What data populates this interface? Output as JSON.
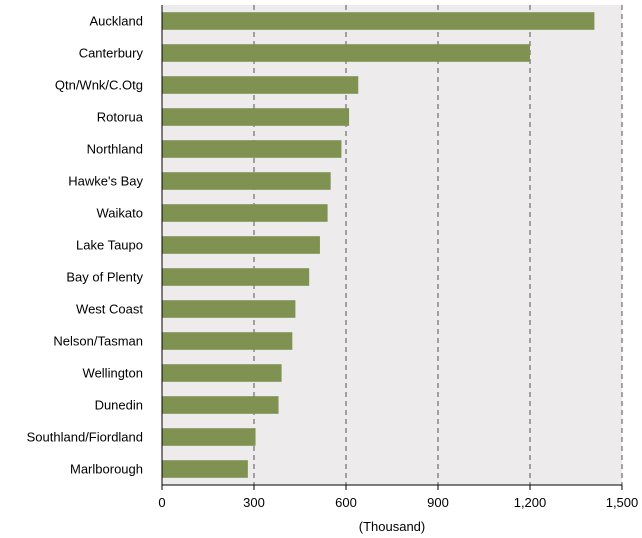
{
  "chart_data": {
    "type": "bar",
    "orientation": "horizontal",
    "categories": [
      "Auckland",
      "Canterbury",
      "Qtn/Wnk/C.Otg",
      "Rotorua",
      "Northland",
      "Hawke's Bay",
      "Waikato",
      "Lake Taupo",
      "Bay of Plenty",
      "West Coast",
      "Nelson/Tasman",
      "Wellington",
      "Dunedin",
      "Southland/Fiordland",
      "Marlborough"
    ],
    "values": [
      1410,
      1200,
      640,
      610,
      585,
      550,
      540,
      515,
      480,
      435,
      425,
      390,
      380,
      305,
      280
    ],
    "xlabel": "(Thousand)",
    "ylabel": "",
    "xlim": [
      0,
      1500
    ],
    "xticks": [
      0,
      300,
      600,
      900,
      1200,
      1500
    ],
    "xtick_labels": [
      "0",
      "300",
      "600",
      "900",
      "1,200",
      "1,500"
    ],
    "grid": "vertical dashed",
    "legend": "none",
    "colors": {
      "bar": "#7F9252",
      "plot_background": "#EDEBEB",
      "grid": "#555555",
      "axis": "#000000"
    }
  }
}
